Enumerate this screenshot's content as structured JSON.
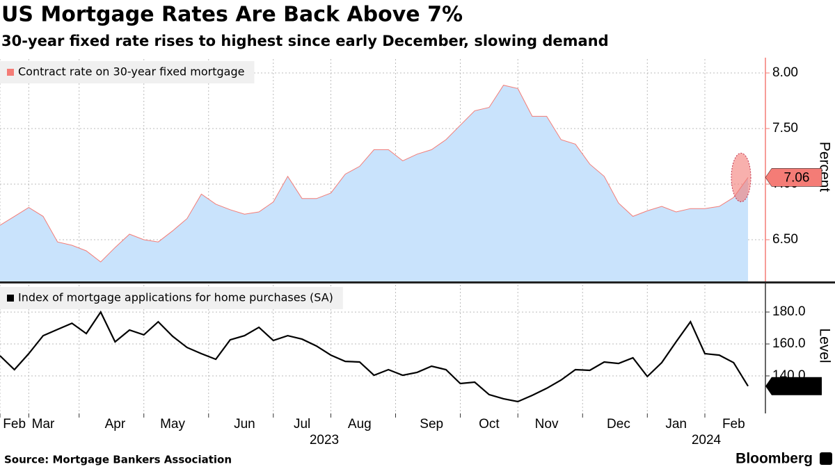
{
  "header": {
    "title": "US Mortgage Rates Are Back Above 7%",
    "subtitle": "30-year fixed rate rises to highest since early December, slowing demand"
  },
  "footer": {
    "source": "Source: Mortgage Bankers Association",
    "brand": "Bloomberg"
  },
  "chart_data": [
    {
      "type": "area",
      "series": [
        {
          "name": "Contract rate on 30-year fixed mortgage",
          "color": "#f47c76",
          "fill": "#c9e3fc",
          "values": [
            6.63,
            6.71,
            6.79,
            6.71,
            6.48,
            6.45,
            6.4,
            6.3,
            6.43,
            6.55,
            6.5,
            6.48,
            6.58,
            6.69,
            6.91,
            6.82,
            6.77,
            6.73,
            6.75,
            6.84,
            7.07,
            6.87,
            6.87,
            6.92,
            7.09,
            7.16,
            7.31,
            7.31,
            7.21,
            7.27,
            7.31,
            7.4,
            7.53,
            7.66,
            7.69,
            7.89,
            7.86,
            7.61,
            7.61,
            7.4,
            7.36,
            7.18,
            7.07,
            6.83,
            6.71,
            6.76,
            6.8,
            6.75,
            6.78,
            6.78,
            6.8,
            6.88,
            7.06
          ]
        }
      ],
      "ylim": [
        6.125,
        8.125
      ],
      "yticks": [
        {
          "value": 6.5,
          "label": "6.50"
        },
        {
          "value": 7,
          "label": "7.00"
        },
        {
          "value": 7.5,
          "label": "7.50"
        },
        {
          "value": 8,
          "label": "8.00"
        }
      ],
      "y_label": "Percent",
      "grid": true
    },
    {
      "type": "line",
      "categories": [
        null,
        "Feb",
        null,
        "Mar",
        null,
        null,
        null,
        null,
        "Apr",
        null,
        null,
        null,
        "May",
        null,
        null,
        null,
        null,
        "Jun",
        null,
        null,
        null,
        "Jul",
        null,
        null,
        null,
        "Aug",
        null,
        null,
        null,
        null,
        "Sep",
        null,
        null,
        null,
        "Oct",
        null,
        null,
        null,
        "Nov",
        null,
        null,
        null,
        null,
        "Dec",
        null,
        null,
        null,
        "Jan",
        null,
        null,
        null,
        "Feb",
        null
      ],
      "years": [
        "2023",
        "2024"
      ],
      "series": [
        {
          "name": "Index of mortgage applications for home purchases (SA)",
          "color": "#000000",
          "values": [
            152.6,
            143.9,
            153.9,
            165.2,
            169.1,
            173.0,
            166.5,
            180.0,
            161.3,
            168.7,
            165.7,
            173.9,
            164.8,
            157.8,
            153.9,
            150.4,
            162.6,
            165.2,
            170.4,
            162.2,
            165.2,
            163.0,
            158.7,
            153.0,
            149.1,
            148.7,
            140.4,
            143.9,
            140.4,
            142.2,
            146.1,
            143.9,
            135.2,
            136.1,
            128.3,
            125.7,
            123.9,
            127.8,
            132.2,
            137.4,
            143.9,
            143.5,
            148.7,
            147.8,
            151.3,
            139.6,
            148.3,
            161.3,
            173.9,
            153.9,
            153.0,
            148.3,
            133.6
          ]
        }
      ],
      "ylim": [
        116.5,
        197
      ],
      "yticks": [
        {
          "value": 140,
          "label": "140.0"
        },
        {
          "value": 160,
          "label": "160.0"
        },
        {
          "value": 180,
          "label": "180.0"
        }
      ],
      "y_label": "Level",
      "grid": true
    }
  ]
}
